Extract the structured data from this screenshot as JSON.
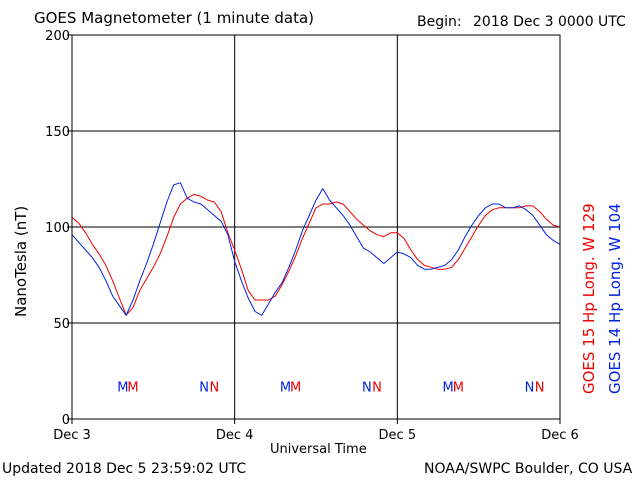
{
  "header": {
    "title": "GOES Magnetometer (1 minute data)",
    "begin_label": "Begin:",
    "begin_value": "2018 Dec 3 0000 UTC"
  },
  "footer": {
    "updated": "Updated 2018 Dec  5 23:59:02 UTC",
    "source": "NOAA/SWPC Boulder, CO USA"
  },
  "legend": {
    "goes15": "GOES 15 Hp  Long. W 129",
    "goes14": "GOES 14 Hp  Long. W 104"
  },
  "colors": {
    "goes15": "#ee0000",
    "goes14": "#0022dd",
    "grid": "#000000"
  },
  "chart_data": {
    "type": "line",
    "title": "GOES Magnetometer (1 minute data)",
    "xlabel": "Universal Time",
    "ylabel": "NanoTesla (nT)",
    "xlim": [
      0,
      72
    ],
    "ylim": [
      0,
      200
    ],
    "x_unit": "hours since 2018 Dec 3 0000 UTC",
    "x_ticks": [
      {
        "x": 0,
        "label": "Dec 3"
      },
      {
        "x": 24,
        "label": "Dec 4"
      },
      {
        "x": 48,
        "label": "Dec 5"
      },
      {
        "x": 72,
        "label": "Dec 6"
      }
    ],
    "y_ticks": [
      0,
      50,
      100,
      150,
      200
    ],
    "grid": true,
    "legend_position": "right, vertical",
    "series": [
      {
        "name": "GOES 15 Hp  Long. W 129",
        "color": "#ee0000",
        "points": [
          [
            0,
            105
          ],
          [
            1,
            102
          ],
          [
            2,
            97
          ],
          [
            3,
            91
          ],
          [
            4,
            86
          ],
          [
            5,
            80
          ],
          [
            6,
            72
          ],
          [
            7,
            63
          ],
          [
            8,
            54
          ],
          [
            9,
            58
          ],
          [
            10,
            67
          ],
          [
            11,
            73
          ],
          [
            12,
            79
          ],
          [
            13,
            86
          ],
          [
            14,
            95
          ],
          [
            15,
            105
          ],
          [
            16,
            112
          ],
          [
            17,
            115
          ],
          [
            18,
            117
          ],
          [
            19,
            116
          ],
          [
            20,
            114
          ],
          [
            21,
            113
          ],
          [
            22,
            108
          ],
          [
            23,
            97
          ],
          [
            24,
            88
          ],
          [
            25,
            78
          ],
          [
            26,
            67
          ],
          [
            27,
            62
          ],
          [
            28,
            62
          ],
          [
            29,
            62
          ],
          [
            30,
            64
          ],
          [
            31,
            70
          ],
          [
            32,
            77
          ],
          [
            33,
            85
          ],
          [
            34,
            94
          ],
          [
            35,
            102
          ],
          [
            36,
            110
          ],
          [
            37,
            112
          ],
          [
            38,
            112
          ],
          [
            39,
            113
          ],
          [
            40,
            112
          ],
          [
            41,
            108
          ],
          [
            42,
            104
          ],
          [
            43,
            101
          ],
          [
            44,
            98
          ],
          [
            45,
            96
          ],
          [
            46,
            95
          ],
          [
            47,
            97
          ],
          [
            48,
            97
          ],
          [
            49,
            94
          ],
          [
            50,
            88
          ],
          [
            51,
            83
          ],
          [
            52,
            80
          ],
          [
            53,
            79
          ],
          [
            54,
            78
          ],
          [
            55,
            78
          ],
          [
            56,
            79
          ],
          [
            57,
            83
          ],
          [
            58,
            89
          ],
          [
            59,
            95
          ],
          [
            60,
            101
          ],
          [
            61,
            106
          ],
          [
            62,
            109
          ],
          [
            63,
            110
          ],
          [
            64,
            110
          ],
          [
            65,
            110
          ],
          [
            66,
            110
          ],
          [
            67,
            111
          ],
          [
            68,
            111
          ],
          [
            69,
            108
          ],
          [
            70,
            104
          ],
          [
            71,
            101
          ],
          [
            72,
            100
          ]
        ]
      },
      {
        "name": "GOES 14 Hp  Long. W 104",
        "color": "#0022dd",
        "points": [
          [
            0,
            96
          ],
          [
            1,
            92
          ],
          [
            2,
            88
          ],
          [
            3,
            84
          ],
          [
            4,
            79
          ],
          [
            5,
            72
          ],
          [
            6,
            64
          ],
          [
            7,
            59
          ],
          [
            8,
            54
          ],
          [
            9,
            62
          ],
          [
            10,
            72
          ],
          [
            11,
            81
          ],
          [
            12,
            91
          ],
          [
            13,
            102
          ],
          [
            14,
            113
          ],
          [
            15,
            122
          ],
          [
            16,
            123
          ],
          [
            17,
            115
          ],
          [
            18,
            113
          ],
          [
            19,
            112
          ],
          [
            20,
            109
          ],
          [
            21,
            106
          ],
          [
            22,
            103
          ],
          [
            23,
            96
          ],
          [
            24,
            82
          ],
          [
            25,
            72
          ],
          [
            26,
            63
          ],
          [
            27,
            56
          ],
          [
            28,
            54
          ],
          [
            29,
            60
          ],
          [
            30,
            66
          ],
          [
            31,
            71
          ],
          [
            32,
            79
          ],
          [
            33,
            88
          ],
          [
            34,
            98
          ],
          [
            35,
            106
          ],
          [
            36,
            114
          ],
          [
            37,
            120
          ],
          [
            38,
            114
          ],
          [
            39,
            110
          ],
          [
            40,
            106
          ],
          [
            41,
            101
          ],
          [
            42,
            95
          ],
          [
            43,
            89
          ],
          [
            44,
            87
          ],
          [
            45,
            84
          ],
          [
            46,
            81
          ],
          [
            47,
            84
          ],
          [
            48,
            87
          ],
          [
            49,
            86
          ],
          [
            50,
            84
          ],
          [
            51,
            80
          ],
          [
            52,
            78
          ],
          [
            53,
            78
          ],
          [
            54,
            79
          ],
          [
            55,
            80
          ],
          [
            56,
            83
          ],
          [
            57,
            88
          ],
          [
            58,
            95
          ],
          [
            59,
            101
          ],
          [
            60,
            106
          ],
          [
            61,
            110
          ],
          [
            62,
            112
          ],
          [
            63,
            112
          ],
          [
            64,
            110
          ],
          [
            65,
            110
          ],
          [
            66,
            111
          ],
          [
            67,
            109
          ],
          [
            68,
            106
          ],
          [
            69,
            101
          ],
          [
            70,
            96
          ],
          [
            71,
            93
          ],
          [
            72,
            91
          ]
        ]
      }
    ],
    "markers": [
      {
        "x": 7.5,
        "label": "M",
        "color": "#0022dd"
      },
      {
        "x": 9.0,
        "label": "M",
        "color": "#ee0000"
      },
      {
        "x": 19.5,
        "label": "N",
        "color": "#0022dd"
      },
      {
        "x": 21.0,
        "label": "N",
        "color": "#ee0000"
      },
      {
        "x": 31.5,
        "label": "M",
        "color": "#0022dd"
      },
      {
        "x": 33.0,
        "label": "M",
        "color": "#ee0000"
      },
      {
        "x": 43.5,
        "label": "N",
        "color": "#0022dd"
      },
      {
        "x": 45.0,
        "label": "N",
        "color": "#ee0000"
      },
      {
        "x": 55.5,
        "label": "M",
        "color": "#0022dd"
      },
      {
        "x": 57.0,
        "label": "M",
        "color": "#ee0000"
      },
      {
        "x": 67.5,
        "label": "N",
        "color": "#0022dd"
      },
      {
        "x": 69.0,
        "label": "N",
        "color": "#ee0000"
      }
    ],
    "marker_y": 17
  }
}
